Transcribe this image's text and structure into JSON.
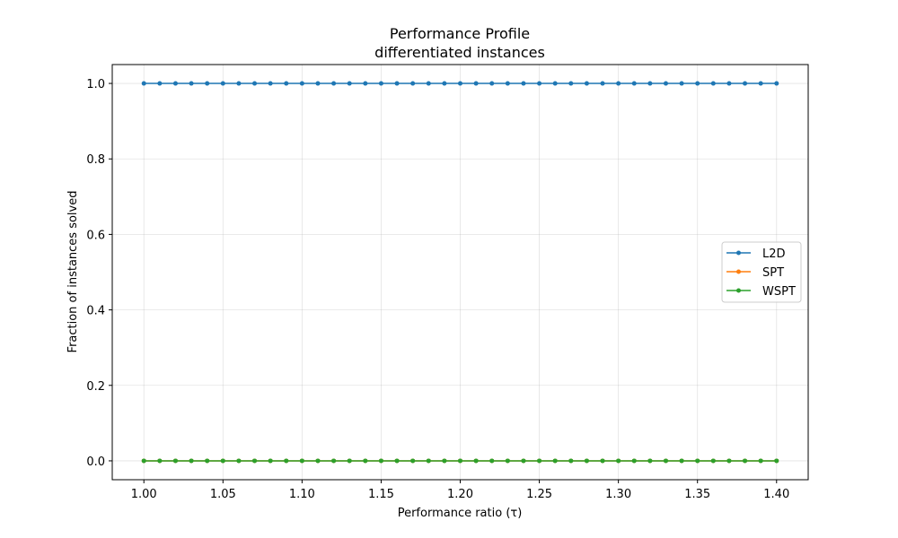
{
  "chart_data": {
    "type": "line",
    "title": "Performance Profile",
    "subtitle": "differentiated instances",
    "xlabel": "Performance ratio (τ)",
    "ylabel": "Fraction of instances solved",
    "xlim": [
      0.98,
      1.42
    ],
    "ylim": [
      -0.05,
      1.05
    ],
    "xticks": [
      "1.00",
      "1.05",
      "1.10",
      "1.15",
      "1.20",
      "1.25",
      "1.30",
      "1.35",
      "1.40"
    ],
    "yticks": [
      "0.0",
      "0.2",
      "0.4",
      "0.6",
      "0.8",
      "1.0"
    ],
    "grid": true,
    "legend_position": "center-right",
    "x": [
      1.0,
      1.01,
      1.02,
      1.03,
      1.04,
      1.05,
      1.06,
      1.07,
      1.08,
      1.09,
      1.1,
      1.11,
      1.12,
      1.13,
      1.14,
      1.15,
      1.16,
      1.17,
      1.18,
      1.19,
      1.2,
      1.21,
      1.22,
      1.23,
      1.24,
      1.25,
      1.26,
      1.27,
      1.28,
      1.29,
      1.3,
      1.31,
      1.32,
      1.33,
      1.34,
      1.35,
      1.36,
      1.37,
      1.38,
      1.39,
      1.4
    ],
    "series": [
      {
        "name": "L2D",
        "color": "#1f77b4",
        "values": [
          1,
          1,
          1,
          1,
          1,
          1,
          1,
          1,
          1,
          1,
          1,
          1,
          1,
          1,
          1,
          1,
          1,
          1,
          1,
          1,
          1,
          1,
          1,
          1,
          1,
          1,
          1,
          1,
          1,
          1,
          1,
          1,
          1,
          1,
          1,
          1,
          1,
          1,
          1,
          1,
          1
        ]
      },
      {
        "name": "SPT",
        "color": "#ff7f0e",
        "values": [
          0,
          0,
          0,
          0,
          0,
          0,
          0,
          0,
          0,
          0,
          0,
          0,
          0,
          0,
          0,
          0,
          0,
          0,
          0,
          0,
          0,
          0,
          0,
          0,
          0,
          0,
          0,
          0,
          0,
          0,
          0,
          0,
          0,
          0,
          0,
          0,
          0,
          0,
          0,
          0,
          0
        ]
      },
      {
        "name": "WSPT",
        "color": "#2ca02c",
        "values": [
          0,
          0,
          0,
          0,
          0,
          0,
          0,
          0,
          0,
          0,
          0,
          0,
          0,
          0,
          0,
          0,
          0,
          0,
          0,
          0,
          0,
          0,
          0,
          0,
          0,
          0,
          0,
          0,
          0,
          0,
          0,
          0,
          0,
          0,
          0,
          0,
          0,
          0,
          0,
          0,
          0
        ]
      }
    ]
  }
}
